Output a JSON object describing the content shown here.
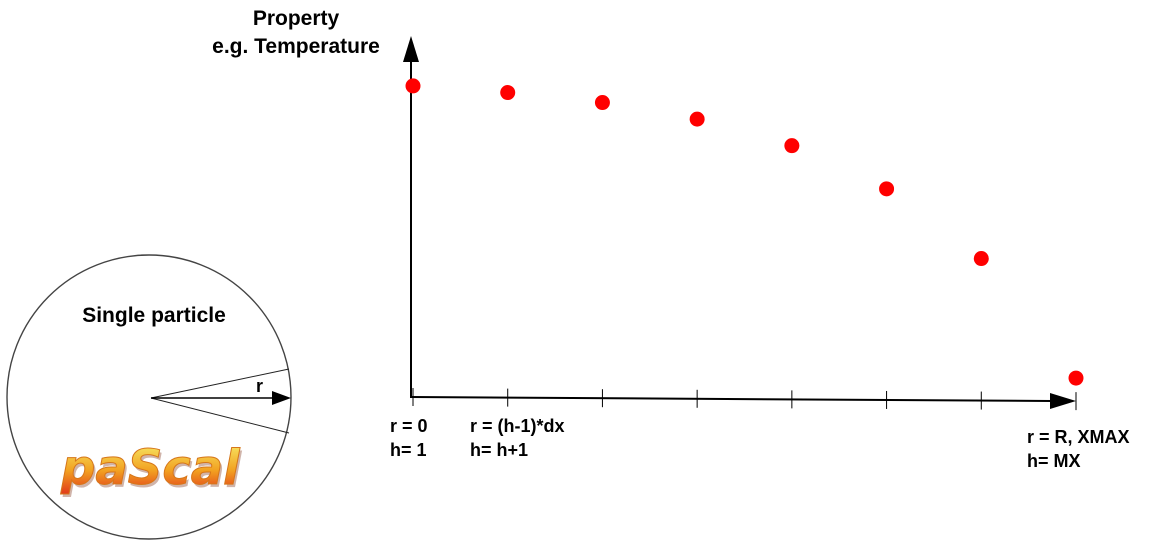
{
  "yaxis": {
    "title_line1": "Property",
    "title_line2": "e.g. Temperature"
  },
  "xaxis": {
    "start_r": "r = 0",
    "start_h": "h= 1",
    "mid_r": "r = (h-1)*dx",
    "mid_h": "h= h+1",
    "end_r": "r = R, XMAX",
    "end_h": "h= MX"
  },
  "particle": {
    "title": "Single particle",
    "radius_label": "r"
  },
  "logo": {
    "text": "paScal"
  },
  "colors": {
    "points": "#ff0000",
    "axis": "#000000",
    "logo_top": "#f4e24a",
    "logo_bottom": "#e23a1a"
  },
  "chart_data": {
    "type": "scatter",
    "x": [
      1,
      2,
      3,
      4,
      5,
      6,
      7,
      8
    ],
    "y": [
      0.94,
      0.92,
      0.89,
      0.84,
      0.76,
      0.63,
      0.42,
      0.06
    ],
    "xlim": [
      1,
      8
    ],
    "ylim": [
      0,
      1
    ]
  }
}
